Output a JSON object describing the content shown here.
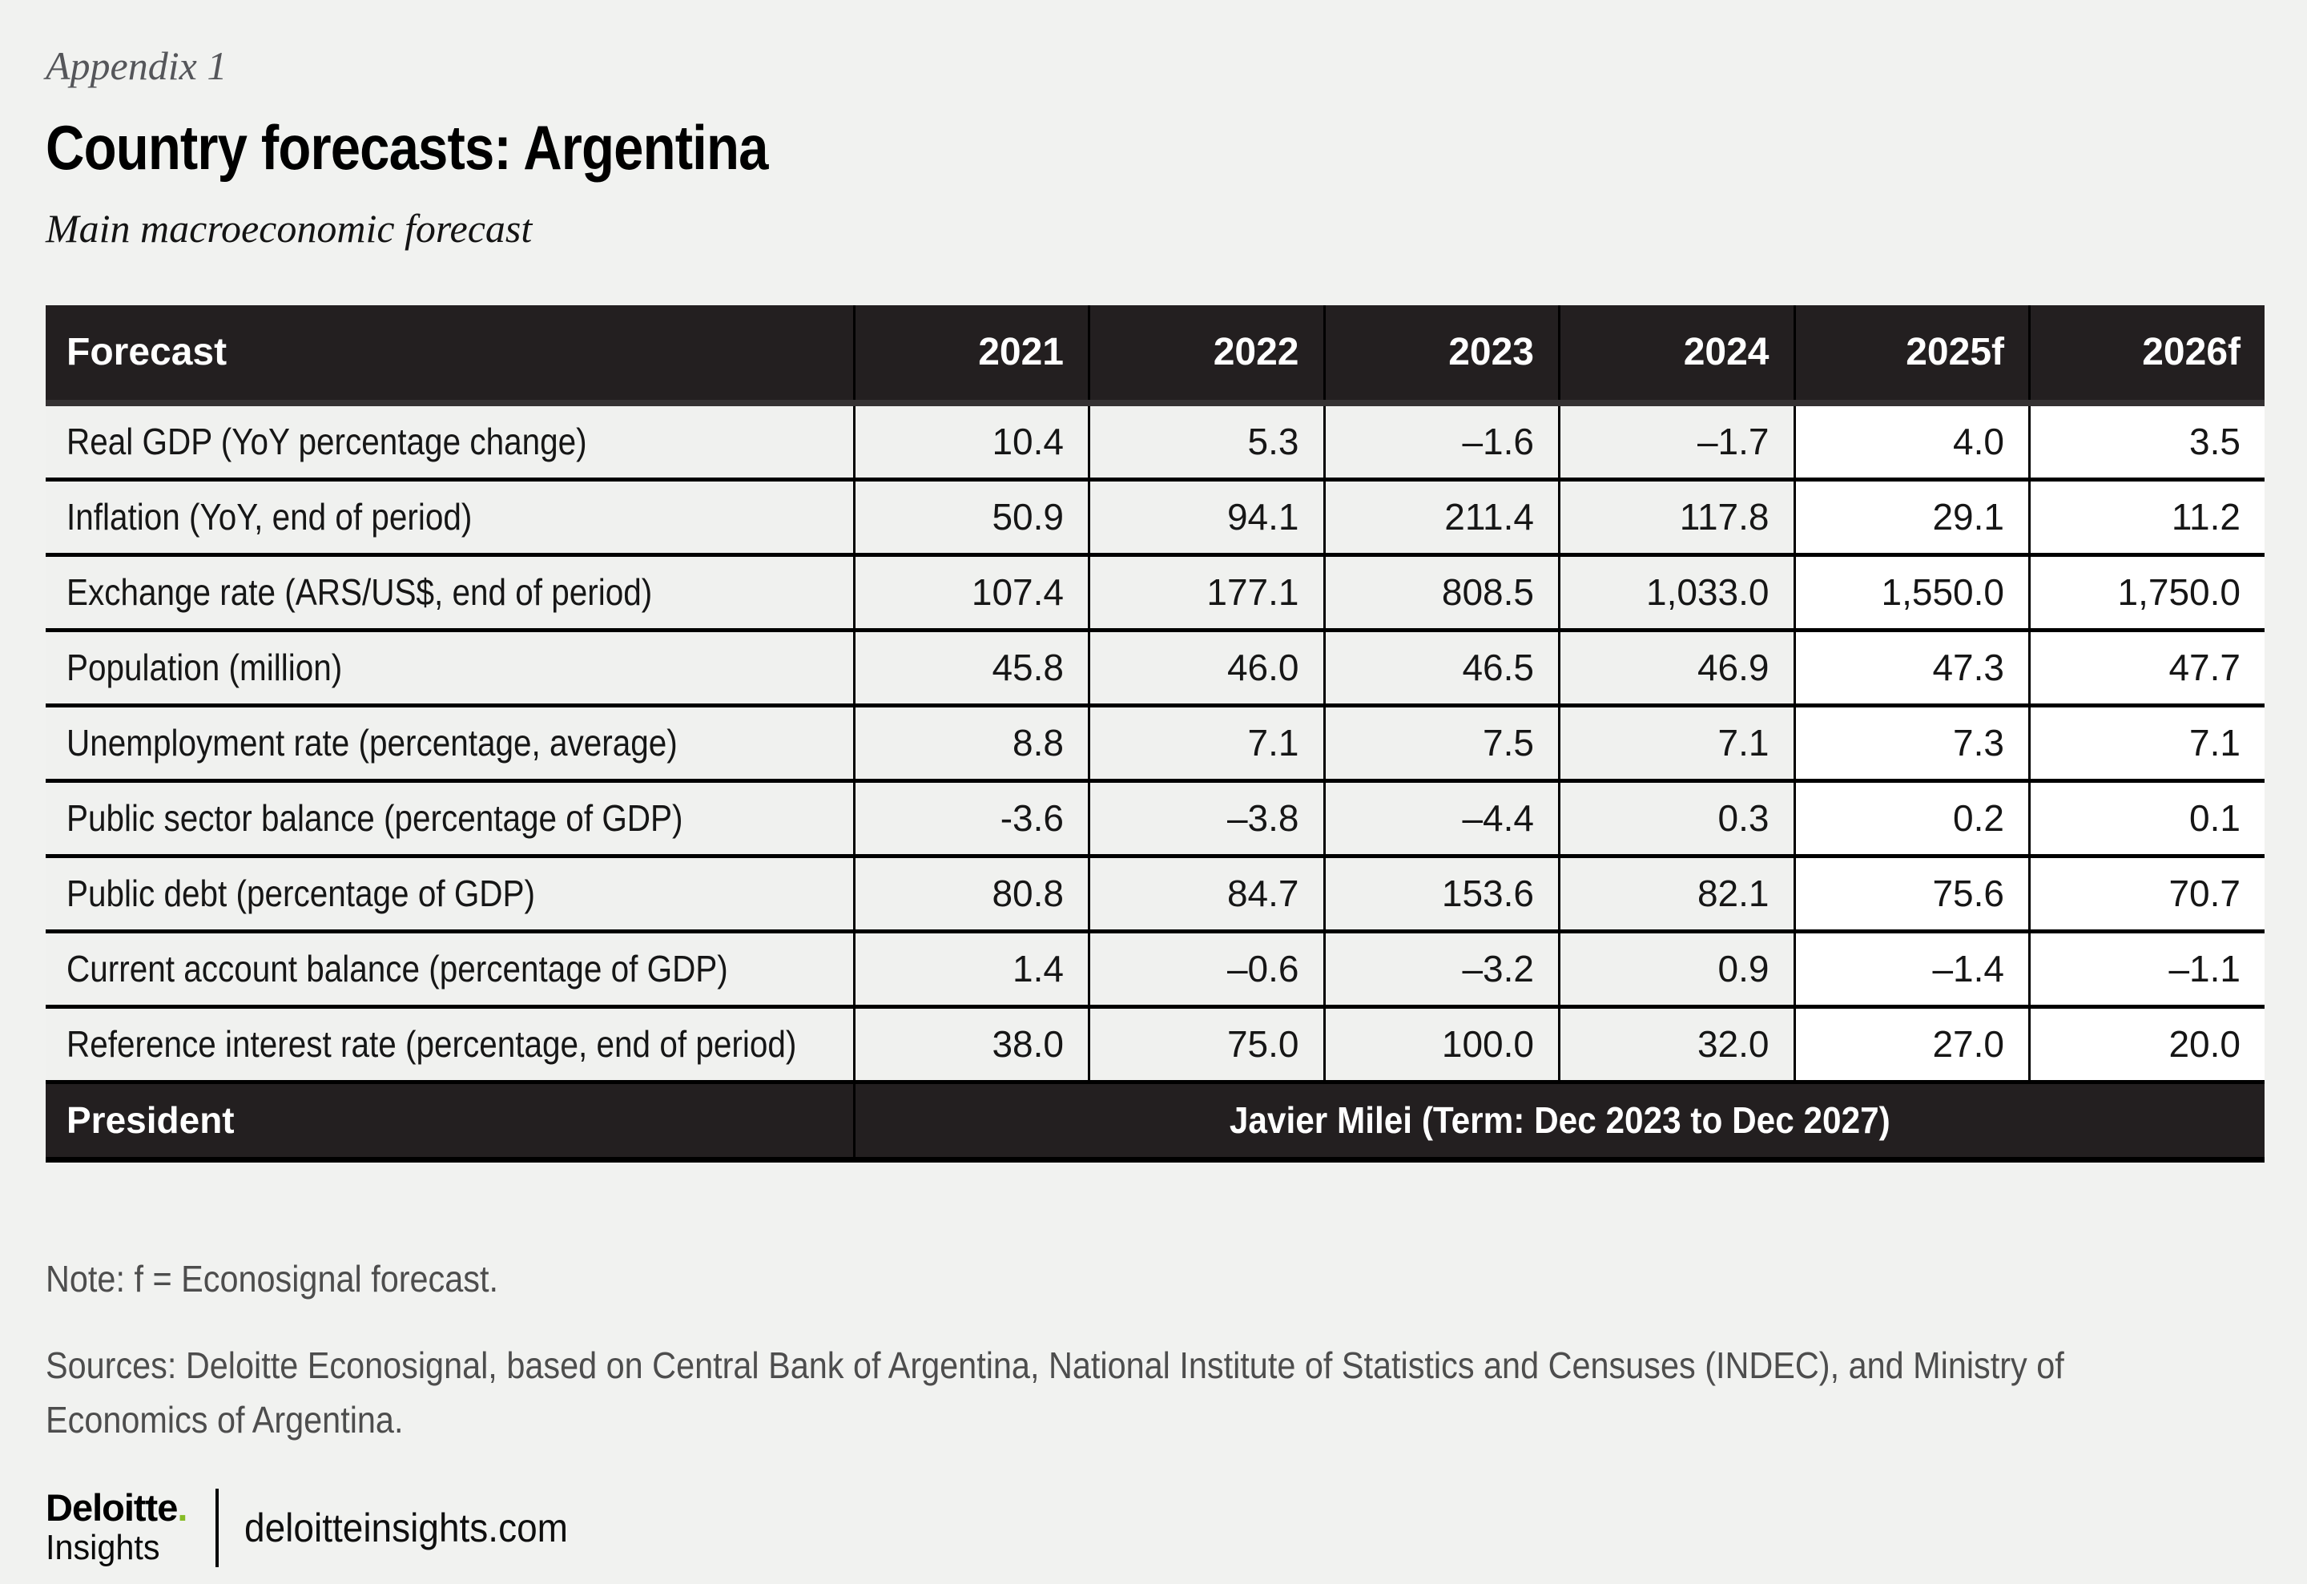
{
  "page": {
    "appendix_label": "Appendix 1",
    "title": "Country forecasts: Argentina",
    "subtitle": "Main macroeconomic forecast",
    "note": "Note: f = Econosignal forecast.",
    "sources": "Sources: Deloitte Econosignal, based on Central Bank of Argentina, National Institute of Statistics and Censuses (INDEC), and Ministry of Economics of Argentina."
  },
  "table": {
    "header": [
      "Forecast",
      "2021",
      "2022",
      "2023",
      "2024",
      "2025f",
      "2026f"
    ],
    "rows": [
      {
        "label": "Real GDP (YoY percentage change)",
        "values": [
          "10.4",
          "5.3",
          "–1.6",
          "–1.7",
          "4.0",
          "3.5"
        ]
      },
      {
        "label": "Inflation (YoY, end of period)",
        "values": [
          "50.9",
          "94.1",
          "211.4",
          "117.8",
          "29.1",
          "11.2"
        ]
      },
      {
        "label": "Exchange rate (ARS/US$, end of period)",
        "values": [
          "107.4",
          "177.1",
          "808.5",
          "1,033.0",
          "1,550.0",
          "1,750.0"
        ]
      },
      {
        "label": "Population (million)",
        "values": [
          "45.8",
          "46.0",
          "46.5",
          "46.9",
          "47.3",
          "47.7"
        ]
      },
      {
        "label": "Unemployment rate (percentage, average)",
        "values": [
          "8.8",
          "7.1",
          "7.5",
          "7.1",
          "7.3",
          "7.1"
        ]
      },
      {
        "label": "Public sector balance (percentage of GDP)",
        "values": [
          "-3.6",
          "–3.8",
          "–4.4",
          "0.3",
          "0.2",
          "0.1"
        ]
      },
      {
        "label": "Public debt (percentage of GDP)",
        "values": [
          "80.8",
          "84.7",
          "153.6",
          "82.1",
          "75.6",
          "70.7"
        ]
      },
      {
        "label": "Current account balance (percentage of GDP)",
        "values": [
          "1.4",
          "–0.6",
          "–3.2",
          "0.9",
          "–1.4",
          "–1.1"
        ]
      },
      {
        "label": "Reference interest rate (percentage, end of period)",
        "values": [
          "38.0",
          "75.0",
          "100.0",
          "32.0",
          "27.0",
          "20.0"
        ]
      }
    ],
    "president_row": {
      "label": "President",
      "value": "Javier Milei (Term: Dec 2023 to Dec 2027)"
    }
  },
  "branding": {
    "brand_word": "Deloitte",
    "brand_dot": ".",
    "brand_sub": "Insights",
    "brand_url": "deloitteinsights.com"
  },
  "colors": {
    "page_bg": "#f1f2f0",
    "table_header_bg": "#231f20",
    "row_shade": "#f0f1ef",
    "forecast_col_bg": "#ffffff",
    "border": "#000000",
    "deloitte_green": "#86bc25"
  }
}
